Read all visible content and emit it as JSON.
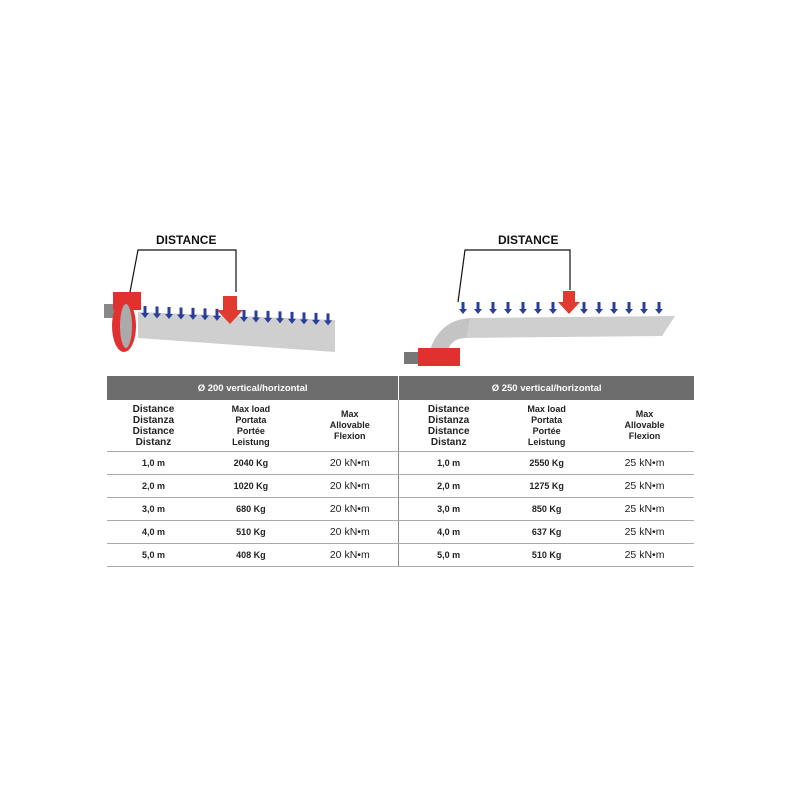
{
  "diagrams": [
    {
      "label": "DISTANCE"
    },
    {
      "label": "DISTANCE"
    }
  ],
  "table": {
    "groups": [
      "Ø 200 vertical/horizontal",
      "Ø 250 vertical/horizontal"
    ],
    "headers": {
      "distance": "Distance\nDistanza\nDistance\nDistanz",
      "load": "Max load\nPortata\nPortée\nLeistung",
      "flexion": "Max\nAllovable\nFlexion"
    },
    "rows": [
      {
        "d1": "1,0 m",
        "l1": "2040 Kg",
        "f1": "20 kN•m",
        "d2": "1,0 m",
        "l2": "2550 Kg",
        "f2": "25 kN•m"
      },
      {
        "d1": "2,0 m",
        "l1": "1020 Kg",
        "f1": "20 kN•m",
        "d2": "2,0 m",
        "l2": "1275 Kg",
        "f2": "25 kN•m"
      },
      {
        "d1": "3,0 m",
        "l1": "680 Kg",
        "f1": "20 kN•m",
        "d2": "3,0 m",
        "l2": "850 Kg",
        "f2": "25 kN•m"
      },
      {
        "d1": "4,0 m",
        "l1": "510 Kg",
        "f1": "20 kN•m",
        "d2": "4,0 m",
        "l2": "637 Kg",
        "f2": "25 kN•m"
      },
      {
        "d1": "5,0 m",
        "l1": "408 Kg",
        "f1": "20 kN•m",
        "d2": "5,0 m",
        "l2": "510 Kg",
        "f2": "25 kN•m"
      }
    ]
  },
  "colors": {
    "pipe": "#cfcfcf",
    "clamp": "#e03030",
    "arrow_small": "#2a3f9a",
    "arrow_main": "#e33a2f",
    "header": "#6d6d6d"
  }
}
